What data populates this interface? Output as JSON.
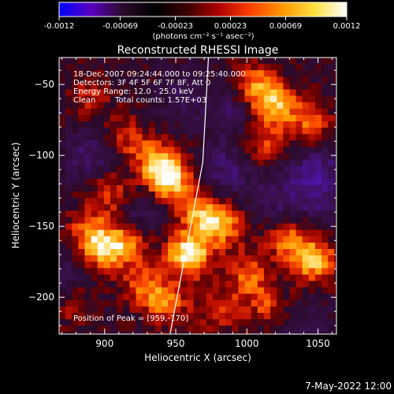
{
  "colorbar": {
    "tick_labels": [
      "-0.0012",
      "-0.00069",
      "-0.00023",
      "0.00023",
      "0.00069",
      "0.0012"
    ],
    "units_label": "(photons cm⁻² s⁻¹ asec⁻²)",
    "range": [
      -0.0012,
      0.0012
    ],
    "colormap": "rainbow-negative / hot-positive",
    "colors": [
      "#0000ff",
      "#5a00c0",
      "#2a0a2a",
      "#000000",
      "#3a0000",
      "#b00000",
      "#ff4000",
      "#ff9800",
      "#ffe040",
      "#ffffff"
    ]
  },
  "title": "Reconstructed RHESSI Image",
  "info": {
    "line1": "18-Dec-2007 09:24:44.000 to 09:25:40.000",
    "line2": "Detectors: 3F 4F 5F 6F 7F 8F, Att 0",
    "line3": "Energy Range: 12.0 - 25.0 keV",
    "line4_left": "Clean",
    "line4_right": "Total counts: 1.57E+03"
  },
  "peak_label": "Position of Peak = [959,-170]",
  "timestamp": "7-May-2022 12:00",
  "chart_data": {
    "type": "heatmap",
    "title": "Reconstructed RHESSI Image",
    "xlabel": "Heliocentric X (arcsec)",
    "ylabel": "Heliocentric Y (arcsec)",
    "xlim": [
      868,
      1063
    ],
    "ylim": [
      -226,
      -31
    ],
    "x_ticks": [
      900,
      950,
      1000,
      1050
    ],
    "y_ticks": [
      -50,
      -100,
      -150,
      -200
    ],
    "x_tick_labels": [
      "900",
      "950",
      "1000",
      "1050"
    ],
    "y_tick_labels": [
      "−50",
      "−100",
      "−150",
      "−200"
    ],
    "limb_line": [
      [
        946,
        -226
      ],
      [
        969,
        -105
      ],
      [
        973,
        -31
      ]
    ],
    "peak": [
      959,
      -170
    ],
    "hotspots": [
      {
        "x": 915,
        "y": -88,
        "value": 0.0005
      },
      {
        "x": 937,
        "y": -105,
        "value": 0.0008
      },
      {
        "x": 946,
        "y": -118,
        "value": 0.001
      },
      {
        "x": 904,
        "y": -127,
        "value": 0.0006
      },
      {
        "x": 888,
        "y": -153,
        "value": 0.0005
      },
      {
        "x": 898,
        "y": -166,
        "value": 0.0009
      },
      {
        "x": 916,
        "y": -162,
        "value": 0.0007
      },
      {
        "x": 928,
        "y": -193,
        "value": 0.0006
      },
      {
        "x": 944,
        "y": -205,
        "value": 0.0006
      },
      {
        "x": 959,
        "y": -170,
        "value": 0.0012
      },
      {
        "x": 968,
        "y": -142,
        "value": 0.0008
      },
      {
        "x": 985,
        "y": -150,
        "value": 0.0007
      },
      {
        "x": 1005,
        "y": -50,
        "value": 0.0007
      },
      {
        "x": 1020,
        "y": -65,
        "value": 0.0009
      },
      {
        "x": 1045,
        "y": -78,
        "value": 0.0006
      },
      {
        "x": 1010,
        "y": -92,
        "value": 0.0005
      },
      {
        "x": 1030,
        "y": -160,
        "value": 0.0007
      },
      {
        "x": 1048,
        "y": -175,
        "value": 0.0009
      },
      {
        "x": 1000,
        "y": -185,
        "value": 0.0006
      },
      {
        "x": 1015,
        "y": -206,
        "value": 0.0005
      },
      {
        "x": 878,
        "y": -205,
        "value": 0.0004
      },
      {
        "x": 980,
        "y": -210,
        "value": 0.0005
      },
      {
        "x": 890,
        "y": -60,
        "value": 0.0004
      }
    ],
    "coldspots": [
      {
        "x": 890,
        "y": -100,
        "value": -0.0005
      },
      {
        "x": 1050,
        "y": -110,
        "value": -0.0005
      },
      {
        "x": 1050,
        "y": -130,
        "value": -0.0004
      },
      {
        "x": 985,
        "y": -110,
        "value": -0.0005
      },
      {
        "x": 990,
        "y": -70,
        "value": -0.0004
      },
      {
        "x": 925,
        "y": -140,
        "value": -0.0004
      },
      {
        "x": 1020,
        "y": -130,
        "value": -0.0004
      },
      {
        "x": 870,
        "y": -185,
        "value": -0.0004
      },
      {
        "x": 955,
        "y": -60,
        "value": -0.0003
      },
      {
        "x": 1040,
        "y": -220,
        "value": -0.0003
      }
    ]
  }
}
